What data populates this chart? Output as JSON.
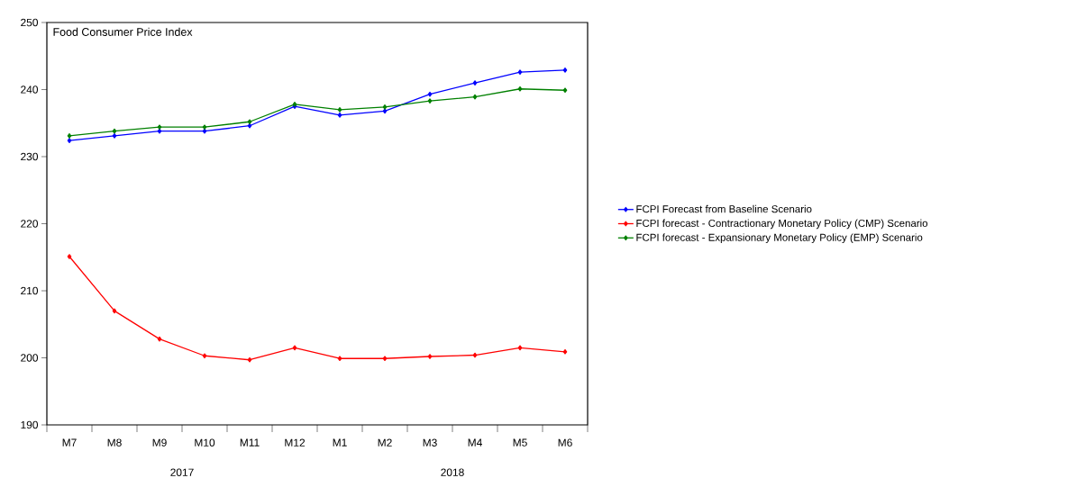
{
  "chart_data": {
    "type": "line",
    "title": "Food Consumer Price Index",
    "categories": [
      "M7",
      "M8",
      "M9",
      "M10",
      "M11",
      "M12",
      "M1",
      "M2",
      "M3",
      "M4",
      "M5",
      "M6"
    ],
    "series": [
      {
        "name": "FCPI Forecast from Baseline Scenario",
        "color": "#0000ff",
        "values": [
          232.4,
          233.1,
          233.8,
          233.8,
          234.6,
          237.5,
          236.2,
          236.8,
          239.3,
          241.0,
          242.6,
          242.9
        ]
      },
      {
        "name": "FCPI forecast - Contractionary Monetary Policy (CMP) Scenario",
        "color": "#ff0000",
        "values": [
          215.1,
          207.0,
          202.8,
          200.3,
          199.7,
          201.5,
          199.9,
          199.9,
          200.2,
          200.4,
          201.5,
          200.9
        ]
      },
      {
        "name": "FCPI forecast - Expansionary Monetary Policy (EMP) Scenario",
        "color": "#008000",
        "values": [
          233.1,
          233.8,
          234.4,
          234.4,
          235.2,
          237.8,
          237.0,
          237.4,
          238.3,
          238.9,
          240.1,
          239.9
        ]
      }
    ],
    "annotations": [
      "2017",
      "2018"
    ],
    "ylim": [
      190,
      250
    ],
    "yticks": [
      190,
      200,
      210,
      220,
      230,
      240,
      250
    ],
    "legend": "right",
    "marker": "diamond",
    "line_style": "solid",
    "grid": false
  }
}
